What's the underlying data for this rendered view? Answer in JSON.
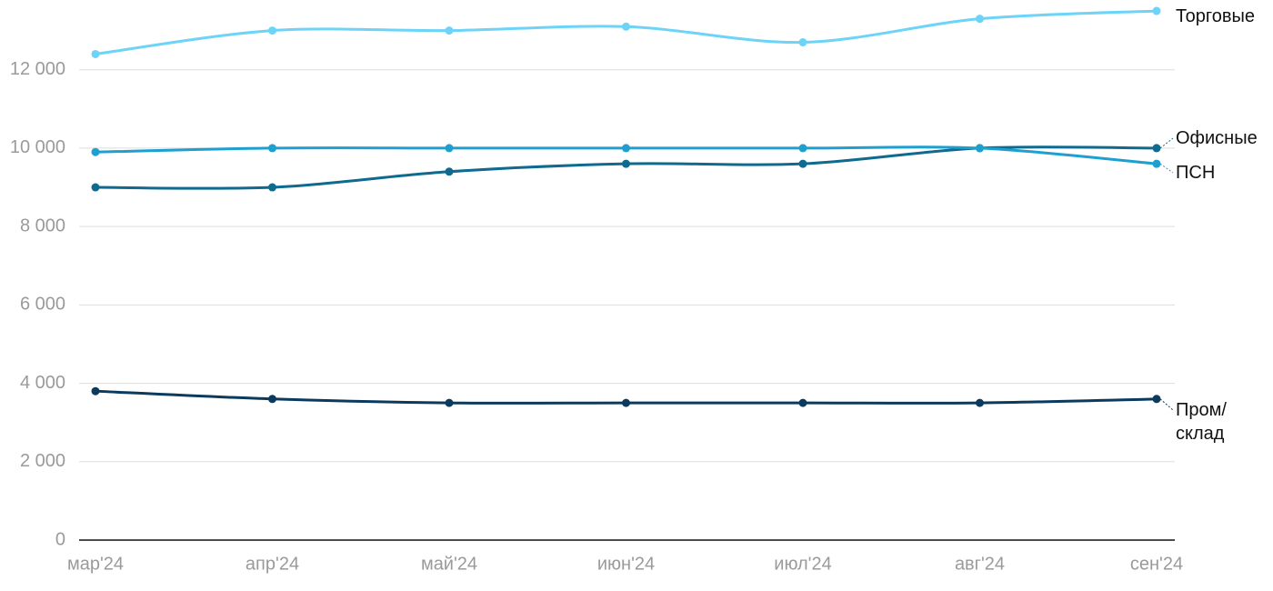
{
  "chart_data": {
    "type": "line",
    "categories": [
      "мар'24",
      "апр'24",
      "май'24",
      "июн'24",
      "июл'24",
      "авг'24",
      "сен'24"
    ],
    "series": [
      {
        "name": "Торговые",
        "color": "#6dd3f7",
        "values": [
          12400,
          13000,
          13000,
          13100,
          12700,
          13300,
          13500
        ]
      },
      {
        "name": "Офисные",
        "color": "#0e6a8e",
        "values": [
          9000,
          9000,
          9400,
          9600,
          9600,
          10000,
          10000
        ]
      },
      {
        "name": "ПСН",
        "color": "#1d9fd0",
        "values": [
          9900,
          10000,
          10000,
          10000,
          10000,
          10000,
          9600
        ]
      },
      {
        "name": "Пром/ склад",
        "color": "#0b3a5c",
        "values": [
          3800,
          3600,
          3500,
          3500,
          3500,
          3500,
          3600
        ]
      }
    ],
    "ylim": [
      0,
      14000
    ],
    "yticks": [
      0,
      {
        "value": 2000,
        "label": "2 000"
      },
      {
        "value": 4000,
        "label": "4 000"
      },
      {
        "value": 6000,
        "label": "6 000"
      },
      {
        "value": 8000,
        "label": "8 000"
      },
      {
        "value": 10000,
        "label": "10 000"
      },
      {
        "value": 12000,
        "label": "12 000"
      }
    ],
    "grid": true
  }
}
